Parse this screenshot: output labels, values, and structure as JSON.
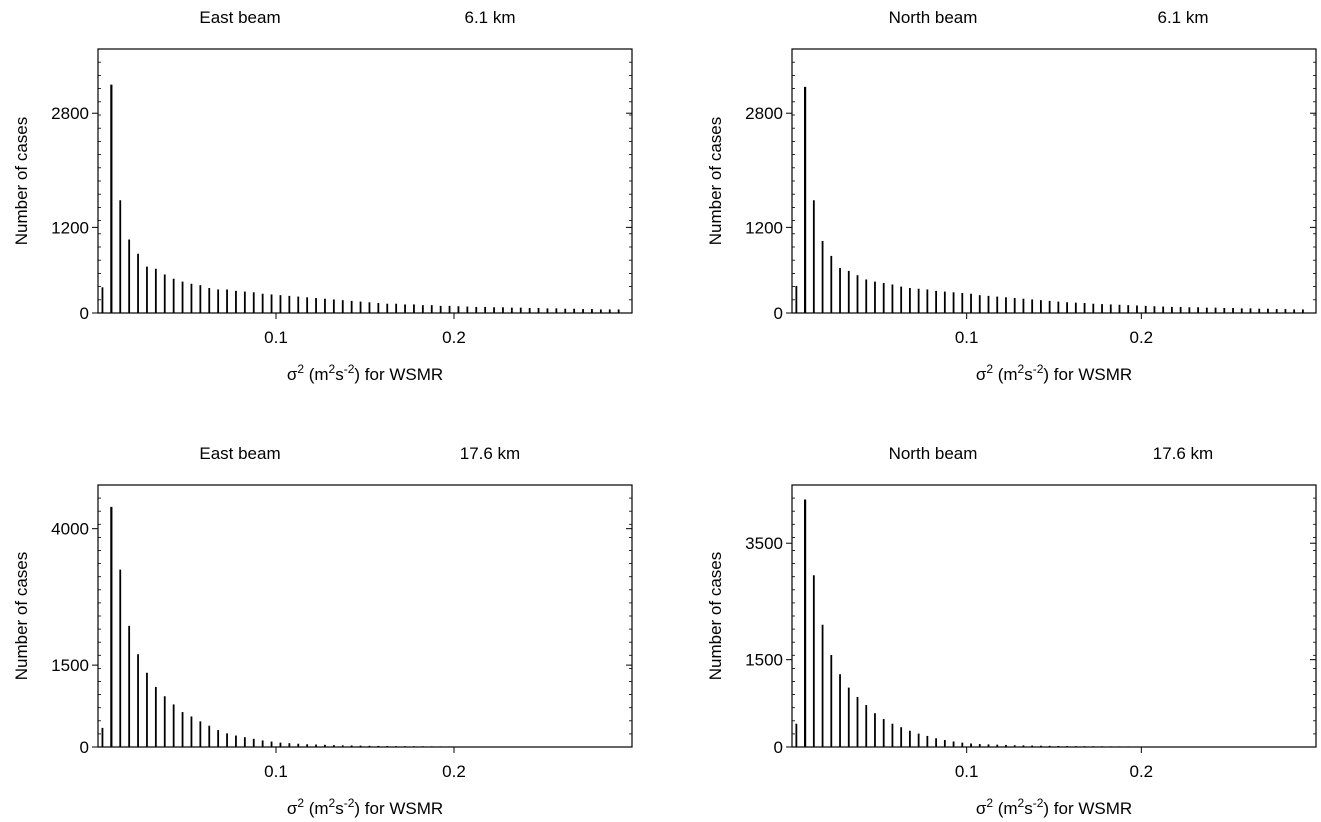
{
  "chart_data": [
    {
      "type": "bar",
      "title_left": "East beam",
      "title_right": "6.1 km",
      "ylabel": "Number of cases",
      "xlabel": {
        "pre": "σ",
        "sup1": "2",
        "mid1": " (m",
        "sup2": "2",
        "mid2": "s",
        "sup3": "-2",
        "post": ") for WSMR"
      },
      "xlim": [
        0,
        0.3
      ],
      "ylim": [
        0,
        3700
      ],
      "xticks": [
        0.1,
        0.2
      ],
      "xtick_labels": [
        "0.1",
        "0.2"
      ],
      "yticks": [
        0,
        1200,
        2800
      ],
      "ytick_labels": [
        "0",
        "1200",
        "2800"
      ],
      "bin_width": 0.005,
      "x_start": 0.0,
      "values": [
        360,
        3200,
        1580,
        1030,
        830,
        650,
        620,
        540,
        480,
        440,
        410,
        390,
        350,
        330,
        330,
        310,
        300,
        290,
        270,
        260,
        250,
        240,
        230,
        220,
        210,
        200,
        190,
        180,
        170,
        160,
        150,
        140,
        130,
        130,
        120,
        120,
        110,
        110,
        100,
        100,
        95,
        90,
        85,
        85,
        80,
        80,
        75,
        75,
        70,
        70,
        65,
        65,
        60,
        60,
        55,
        55,
        50,
        50,
        50
      ]
    },
    {
      "type": "bar",
      "title_left": "North beam",
      "title_right": "6.1 km",
      "ylabel": "Number of cases",
      "xlabel": {
        "pre": "σ",
        "sup1": "2",
        "mid1": " (m",
        "sup2": "2",
        "mid2": "s",
        "sup3": "-2",
        "post": ") for WSMR"
      },
      "xlim": [
        0,
        0.3
      ],
      "ylim": [
        0,
        3700
      ],
      "xticks": [
        0.1,
        0.2
      ],
      "xtick_labels": [
        "0.1",
        "0.2"
      ],
      "yticks": [
        0,
        1200,
        2800
      ],
      "ytick_labels": [
        "0",
        "1200",
        "2800"
      ],
      "bin_width": 0.005,
      "x_start": 0.0,
      "values": [
        380,
        3170,
        1580,
        1010,
        800,
        630,
        590,
        530,
        470,
        440,
        420,
        400,
        370,
        350,
        340,
        330,
        310,
        300,
        290,
        280,
        270,
        250,
        240,
        230,
        220,
        210,
        200,
        190,
        180,
        170,
        160,
        150,
        145,
        140,
        130,
        125,
        120,
        115,
        110,
        105,
        100,
        95,
        90,
        85,
        85,
        80,
        80,
        75,
        75,
        70,
        70,
        65,
        65,
        60,
        60,
        55,
        55,
        50,
        50
      ]
    },
    {
      "type": "bar",
      "title_left": "East beam",
      "title_right": "17.6 km",
      "ylabel": "Number of cases",
      "xlabel": {
        "pre": "σ",
        "sup1": "2",
        "mid1": " (m",
        "sup2": "2",
        "mid2": "s",
        "sup3": "-2",
        "post": ") for WSMR"
      },
      "xlim": [
        0,
        0.3
      ],
      "ylim": [
        0,
        4800
      ],
      "xticks": [
        0.1,
        0.2
      ],
      "xtick_labels": [
        "0.1",
        "0.2"
      ],
      "yticks": [
        0,
        1500,
        4000
      ],
      "ytick_labels": [
        "0",
        "1500",
        "4000"
      ],
      "bin_width": 0.005,
      "x_start": 0.0,
      "values": [
        350,
        4400,
        3250,
        2220,
        1700,
        1360,
        1100,
        930,
        780,
        640,
        560,
        470,
        390,
        310,
        250,
        210,
        180,
        150,
        120,
        100,
        80,
        70,
        60,
        50,
        45,
        40,
        35,
        30,
        28,
        25,
        22,
        20,
        18,
        16,
        15,
        14,
        13,
        12,
        11,
        10,
        10,
        9,
        9,
        8,
        8,
        7,
        7,
        6,
        6,
        6,
        5,
        5,
        5,
        5,
        4,
        4,
        4,
        4,
        4
      ]
    },
    {
      "type": "bar",
      "title_left": "North beam",
      "title_right": "17.6 km",
      "ylabel": "Number of cases",
      "xlabel": {
        "pre": "σ",
        "sup1": "2",
        "mid1": " (m",
        "sup2": "2",
        "mid2": "s",
        "sup3": "-2",
        "post": ") for WSMR"
      },
      "xlim": [
        0,
        0.3
      ],
      "ylim": [
        0,
        4500
      ],
      "xticks": [
        0.1,
        0.2
      ],
      "xtick_labels": [
        "0.1",
        "0.2"
      ],
      "yticks": [
        0,
        1500,
        3500
      ],
      "ytick_labels": [
        "0",
        "1500",
        "3500"
      ],
      "bin_width": 0.005,
      "x_start": 0.0,
      "values": [
        400,
        4250,
        2950,
        2100,
        1580,
        1250,
        1020,
        860,
        720,
        580,
        480,
        400,
        340,
        280,
        230,
        190,
        150,
        120,
        95,
        75,
        60,
        50,
        45,
        40,
        35,
        30,
        28,
        25,
        22,
        20,
        18,
        16,
        15,
        14,
        13,
        12,
        11,
        10,
        10,
        9,
        9,
        8,
        8,
        7,
        7,
        6,
        6,
        6,
        5,
        5,
        5,
        5,
        4,
        4,
        4,
        4,
        4,
        4,
        4
      ]
    }
  ]
}
